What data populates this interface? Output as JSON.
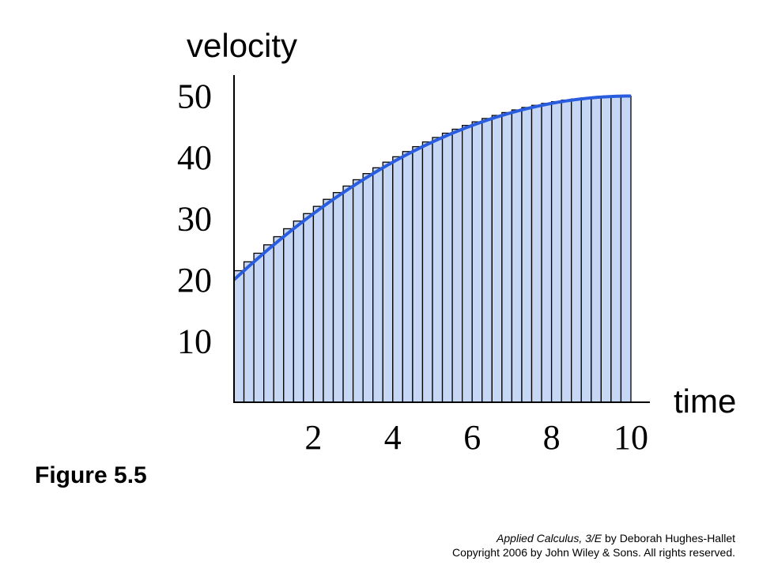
{
  "figure_label": "Figure 5.5",
  "credit": {
    "book_title": "Applied Calculus, 3/E",
    "author_text": " by Deborah Hughes-Hallet",
    "copyright": "Copyright 2006 by John Wiley & Sons.  All rights reserved."
  },
  "chart_data": {
    "type": "area",
    "ylabel": "velocity",
    "xlabel": "time",
    "xlim": [
      0,
      10.5
    ],
    "ylim": [
      0,
      55
    ],
    "x_ticks": [
      2,
      4,
      6,
      8,
      10
    ],
    "x_tick_labels": [
      "2",
      "4",
      "6",
      "8",
      "10"
    ],
    "y_ticks": [
      10,
      20,
      30,
      40,
      50
    ],
    "y_tick_labels": [
      "10",
      "20",
      "30",
      "40",
      "50"
    ],
    "curve": {
      "function": "v(t) = 20 + 6t - 0.3t^2",
      "t_range": [
        0,
        10
      ]
    },
    "rectangles": {
      "count": 40,
      "width": 0.25,
      "rule": "right-endpoint",
      "heights": [
        21.48,
        22.93,
        24.33,
        25.7,
        27.03,
        28.33,
        29.58,
        30.8,
        31.98,
        33.13,
        34.23,
        35.3,
        36.33,
        37.33,
        38.28,
        39.2,
        40.08,
        40.93,
        41.73,
        42.5,
        43.23,
        43.93,
        44.58,
        45.2,
        45.78,
        46.33,
        46.83,
        47.3,
        47.73,
        48.13,
        48.48,
        48.8,
        49.08,
        49.33,
        49.53,
        49.7,
        49.83,
        49.93,
        49.98,
        50.0
      ]
    },
    "grid": false,
    "legend": "none",
    "colors": {
      "fill": "#c6d7f5",
      "curve": "#2a5cde",
      "edge": "#000000"
    }
  }
}
